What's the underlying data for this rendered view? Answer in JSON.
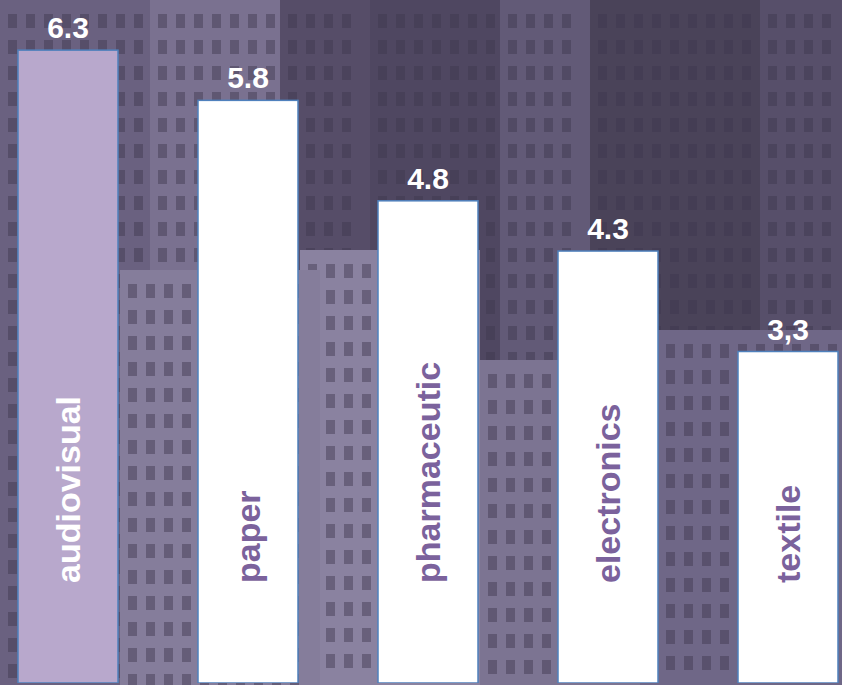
{
  "chart_data": {
    "type": "bar",
    "categories": [
      "audiovisual",
      "paper",
      "pharmaceutic",
      "electronics",
      "textile"
    ],
    "values": [
      6.3,
      5.8,
      4.8,
      4.3,
      3.3
    ],
    "value_labels": [
      "6.3",
      "5.8",
      "4.8",
      "4.3",
      "3,3"
    ],
    "colors": [
      "#b8a8cc",
      "#ffffff",
      "#ffffff",
      "#ffffff",
      "#ffffff"
    ],
    "ylim": [
      0,
      6.6
    ],
    "data_labels": true,
    "tick_labels": false
  }
}
